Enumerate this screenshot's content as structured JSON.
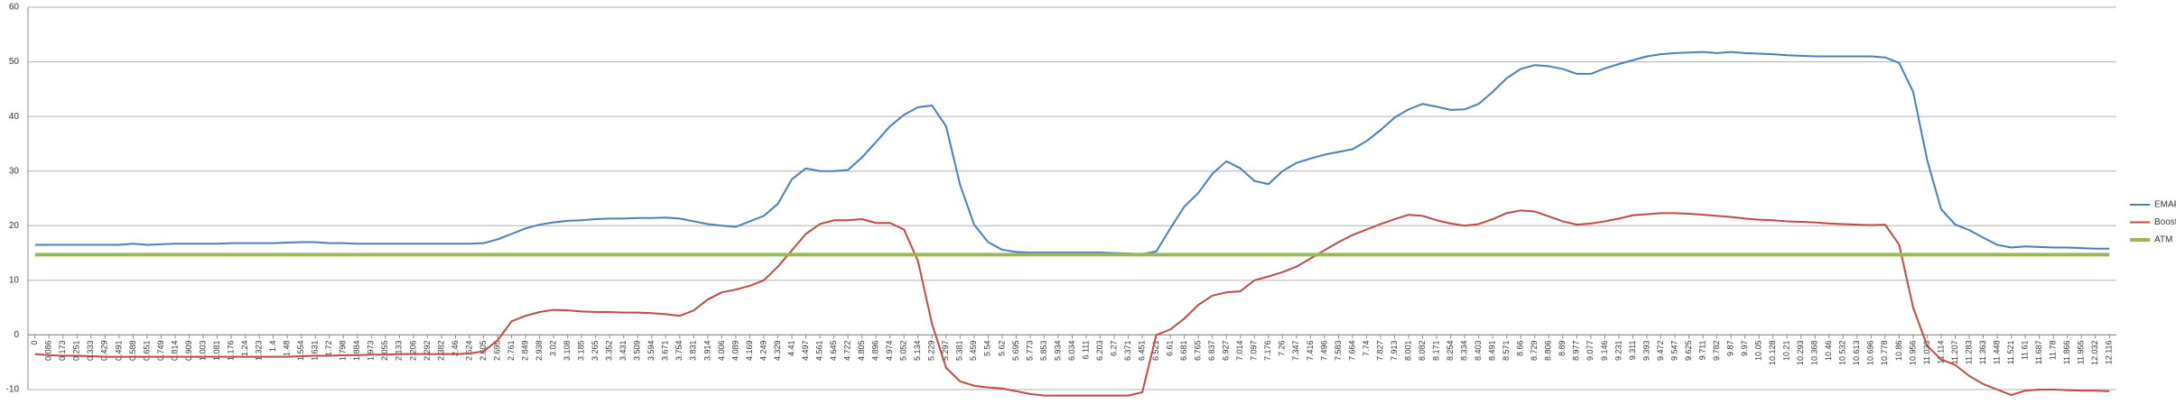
{
  "chart_data": {
    "type": "line",
    "categories": [
      "0",
      "0.086",
      "0.173",
      "0.251",
      "0.333",
      "0.429",
      "0.491",
      "0.588",
      "0.651",
      "0.749",
      "0.814",
      "0.909",
      "1.003",
      "1.081",
      "1.176",
      "1.24",
      "1.323",
      "1.4",
      "1.48",
      "1.554",
      "1.631",
      "1.72",
      "1.798",
      "1.884",
      "1.973",
      "2.055",
      "2.133",
      "2.206",
      "2.292",
      "2.382",
      "2.46",
      "2.524",
      "2.605",
      "2.695",
      "2.761",
      "2.849",
      "2.938",
      "3.02",
      "3.108",
      "3.185",
      "3.265",
      "3.352",
      "3.431",
      "3.509",
      "3.594",
      "3.671",
      "3.754",
      "3.831",
      "3.914",
      "4.006",
      "4.089",
      "4.169",
      "4.249",
      "4.329",
      "4.41",
      "4.497",
      "4.561",
      "4.645",
      "4.722",
      "4.805",
      "4.896",
      "4.974",
      "5.052",
      "5.134",
      "5.229",
      "5.297",
      "5.381",
      "5.459",
      "5.54",
      "5.62",
      "5.695",
      "5.773",
      "5.853",
      "5.934",
      "6.034",
      "6.111",
      "6.203",
      "6.27",
      "6.371",
      "6.451",
      "6.521",
      "6.61",
      "6.681",
      "6.765",
      "6.837",
      "6.927",
      "7.014",
      "7.097",
      "7.176",
      "7.26",
      "7.347",
      "7.416",
      "7.496",
      "7.583",
      "7.664",
      "7.74",
      "7.827",
      "7.913",
      "8.001",
      "8.082",
      "8.171",
      "8.254",
      "8.334",
      "8.403",
      "8.491",
      "8.571",
      "8.66",
      "8.729",
      "8.806",
      "8.89",
      "8.977",
      "9.077",
      "9.146",
      "9.231",
      "9.311",
      "9.393",
      "9.472",
      "9.547",
      "9.625",
      "9.711",
      "9.782",
      "9.87",
      "9.97",
      "10.05",
      "10.128",
      "10.21",
      "10.293",
      "10.368",
      "10.46",
      "10.532",
      "10.613",
      "10.696",
      "10.778",
      "10.86",
      "10.956",
      "11.033",
      "11.114",
      "11.207",
      "11.283",
      "11.363",
      "11.448",
      "11.521",
      "11.61",
      "11.687",
      "11.78",
      "11.866",
      "11.955",
      "12.032",
      "12.116"
    ],
    "series": [
      {
        "name": "EMAP",
        "color": "#4a7ebb",
        "width": 2,
        "values": [
          16.5,
          16.5,
          16.5,
          16.5,
          16.5,
          16.5,
          16.5,
          16.7,
          16.5,
          16.6,
          16.7,
          16.7,
          16.7,
          16.7,
          16.8,
          16.8,
          16.8,
          16.8,
          16.9,
          17,
          17,
          16.8,
          16.8,
          16.7,
          16.7,
          16.7,
          16.7,
          16.7,
          16.7,
          16.7,
          16.7,
          16.7,
          16.8,
          17.5,
          18.5,
          19.5,
          20.2,
          20.6,
          20.9,
          21,
          21.2,
          21.3,
          21.3,
          21.4,
          21.4,
          21.5,
          21.3,
          20.8,
          20.3,
          20,
          19.8,
          20.8,
          21.8,
          24,
          28.5,
          30.5,
          30,
          30,
          30.2,
          32.5,
          35.3,
          38.2,
          40.3,
          41.7,
          42,
          38.2,
          27.5,
          20.2,
          17,
          15.6,
          15.2,
          15.1,
          15.1,
          15.1,
          15.1,
          15.1,
          15.1,
          15,
          14.9,
          14.8,
          15.3,
          19.5,
          23.5,
          26,
          29.5,
          31.8,
          30.5,
          28.2,
          27.6,
          30,
          31.5,
          32.3,
          33,
          33.5,
          34,
          35.5,
          37.5,
          39.8,
          41.3,
          42.3,
          41.8,
          41.2,
          41.3,
          42.3,
          44.5,
          47,
          48.7,
          49.4,
          49.2,
          48.7,
          47.8,
          47.8,
          48.8,
          49.6,
          50.3,
          51,
          51.4,
          51.6,
          51.7,
          51.8,
          51.6,
          51.8,
          51.6,
          51.5,
          51.4,
          51.2,
          51.1,
          51,
          51,
          51,
          51,
          51,
          50.8,
          49.8,
          44.5,
          32,
          23,
          20.2,
          19.2,
          17.8,
          16.5,
          16,
          16.2,
          16.1,
          16,
          16,
          15.9,
          15.8,
          15.8
        ]
      },
      {
        "name": "Boost",
        "color": "#be4b48",
        "width": 2,
        "values": [
          -3.5,
          -3.7,
          -3.8,
          -3.8,
          -3.9,
          -4,
          -4,
          -4,
          -4,
          -4,
          -4,
          -4,
          -4,
          -4,
          -4,
          -4,
          -4,
          -4,
          -4,
          -3.9,
          -3.8,
          -3.8,
          -3.7,
          -3.7,
          -3.6,
          -3.6,
          -3.5,
          -3.5,
          -3.5,
          -3.5,
          -3.5,
          -3.4,
          -3,
          -1,
          2.5,
          3.5,
          4.2,
          4.6,
          4.5,
          4.3,
          4.2,
          4.2,
          4.1,
          4.1,
          4,
          3.8,
          3.5,
          4.5,
          6.5,
          7.8,
          8.3,
          9,
          10,
          12.5,
          15.5,
          18.5,
          20.3,
          21,
          21,
          21.2,
          20.5,
          20.5,
          19.3,
          13.5,
          2,
          -6,
          -8.5,
          -9.3,
          -9.6,
          -9.8,
          -10.3,
          -10.8,
          -11.1,
          -11.1,
          -11.1,
          -11.1,
          -11.1,
          -11.1,
          -11.1,
          -10.5,
          0,
          1,
          3,
          5.5,
          7.2,
          7.8,
          8,
          10,
          10.7,
          11.5,
          12.5,
          14,
          15.5,
          17,
          18.3,
          19.3,
          20.3,
          21.2,
          22,
          21.8,
          21,
          20.4,
          20,
          20.3,
          21.2,
          22.3,
          22.8,
          22.6,
          21.7,
          20.8,
          20.2,
          20.4,
          20.8,
          21.3,
          21.9,
          22.1,
          22.3,
          22.3,
          22.2,
          22,
          21.8,
          21.6,
          21.3,
          21.1,
          21,
          20.8,
          20.7,
          20.6,
          20.4,
          20.3,
          20.2,
          20.1,
          20.2,
          16.5,
          5,
          -2,
          -4.5,
          -5.5,
          -7.5,
          -9,
          -10,
          -11,
          -10.2,
          -10,
          -10,
          -10.1,
          -10.2,
          -10.2,
          -10.3
        ]
      },
      {
        "name": "ATM",
        "color": "#98b954",
        "width": 4,
        "values": [
          14.7,
          14.7,
          14.7,
          14.7,
          14.7,
          14.7,
          14.7,
          14.7,
          14.7,
          14.7,
          14.7,
          14.7,
          14.7,
          14.7,
          14.7,
          14.7,
          14.7,
          14.7,
          14.7,
          14.7,
          14.7,
          14.7,
          14.7,
          14.7,
          14.7,
          14.7,
          14.7,
          14.7,
          14.7,
          14.7,
          14.7,
          14.7,
          14.7,
          14.7,
          14.7,
          14.7,
          14.7,
          14.7,
          14.7,
          14.7,
          14.7,
          14.7,
          14.7,
          14.7,
          14.7,
          14.7,
          14.7,
          14.7,
          14.7,
          14.7,
          14.7,
          14.7,
          14.7,
          14.7,
          14.7,
          14.7,
          14.7,
          14.7,
          14.7,
          14.7,
          14.7,
          14.7,
          14.7,
          14.7,
          14.7,
          14.7,
          14.7,
          14.7,
          14.7,
          14.7,
          14.7,
          14.7,
          14.7,
          14.7,
          14.7,
          14.7,
          14.7,
          14.7,
          14.7,
          14.7,
          14.7,
          14.7,
          14.7,
          14.7,
          14.7,
          14.7,
          14.7,
          14.7,
          14.7,
          14.7,
          14.7,
          14.7,
          14.7,
          14.7,
          14.7,
          14.7,
          14.7,
          14.7,
          14.7,
          14.7,
          14.7,
          14.7,
          14.7,
          14.7,
          14.7,
          14.7,
          14.7,
          14.7,
          14.7,
          14.7,
          14.7,
          14.7,
          14.7,
          14.7,
          14.7,
          14.7,
          14.7,
          14.7,
          14.7,
          14.7,
          14.7,
          14.7,
          14.7,
          14.7,
          14.7,
          14.7,
          14.7,
          14.7,
          14.7,
          14.7,
          14.7,
          14.7,
          14.7,
          14.7,
          14.7,
          14.7,
          14.7,
          14.7,
          14.7,
          14.7,
          14.7,
          14.7,
          14.7,
          14.7,
          14.7,
          14.7,
          14.7,
          14.7,
          14.7
        ]
      }
    ],
    "ylim": [
      -10,
      60
    ],
    "yticks": [
      -10,
      0,
      10,
      20,
      30,
      40,
      50,
      60
    ],
    "grid": true,
    "legend": "right"
  }
}
